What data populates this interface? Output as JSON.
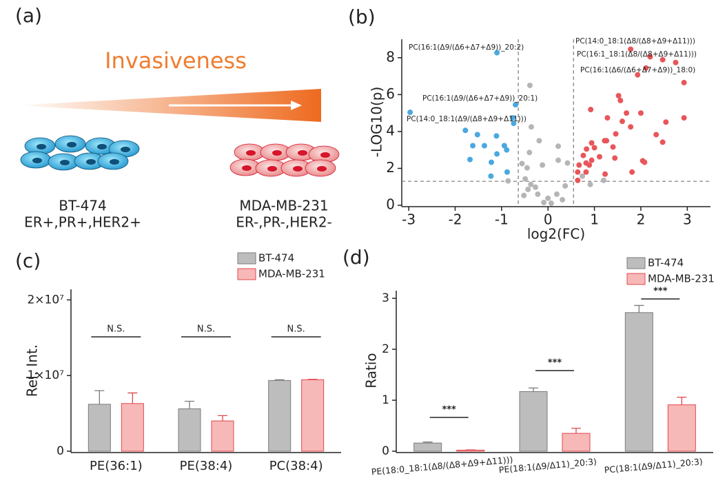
{
  "panel_a": {
    "panel_label": "(a)",
    "title": "Invasiveness",
    "left": {
      "name": "BT-474",
      "receptors": "ER+,PR+,HER2+"
    },
    "right": {
      "name": "MDA-MB-231",
      "receptors": "ER-,PR-,HER2-"
    }
  },
  "chart_data": [
    {
      "type": "scatter",
      "panel_label": "(b)",
      "x_label": "log2(FC)",
      "y_label": "-LOG10(p)",
      "xlim": [
        -3.15,
        3.5
      ],
      "ylim": [
        0,
        9
      ],
      "xticks": [
        -3,
        -2,
        -1,
        0,
        1,
        2,
        3
      ],
      "yticks": [
        0,
        2,
        4,
        6,
        8
      ],
      "threshold_x": [
        -0.64,
        0.55
      ],
      "threshold_y": 1.3,
      "series": [
        {
          "color": "#4aa8e0",
          "x": [
            -1.1,
            -2.97,
            -0.7,
            -0.74,
            -1.78,
            -1.52,
            -1.62,
            -1.68,
            -1.37,
            -1.11,
            -0.94,
            -0.89,
            -1.22,
            -0.88,
            -1.23,
            -1.1,
            -0.76
          ],
          "values": [
            8.27,
            5.04,
            5.45,
            4.44,
            4.06,
            3.83,
            3.23,
            2.48,
            3.23,
            3.76,
            3.23,
            3.0,
            2.33,
            1.8,
            1.58,
            2.78,
            4.74
          ]
        },
        {
          "color": "#b5b5b5",
          "x": [
            -0.39,
            -0.36,
            -0.19,
            -0.4,
            0.22,
            -0.56,
            -0.45,
            -0.12,
            0.22,
            0.42,
            -0.49,
            -0.37,
            -0.27,
            -0.43,
            -0.52,
            -0.22,
            0,
            0.07,
            -0.09,
            0.19,
            0.37,
            0.31,
            -0.86,
            1.2,
            0.91,
            0.74
          ],
          "values": [
            6.5,
            4.25,
            3.5,
            2.86,
            3.2,
            2.26,
            2.03,
            2.18,
            2.44,
            2.29,
            1.43,
            1.13,
            0.98,
            0.86,
            0.53,
            0.6,
            0.38,
            0.11,
            0.15,
            0.6,
            1.05,
            0.3,
            1.32,
            1.35,
            1.13,
            1.58
          ]
        },
        {
          "color": "#e8565a",
          "x": [
            1.78,
            2.2,
            2.47,
            2.75,
            1.93,
            2.11,
            2.93,
            1.52,
            1.56,
            0.92,
            1.69,
            2.0,
            2.93,
            2.54,
            1.28,
            1.6,
            1.78,
            2.33,
            1.46,
            1.22,
            1.26,
            0.94,
            1.0,
            2.47,
            1.4,
            0.83,
            0.76,
            1.11,
            1.44,
            2.04,
            2.08,
            0.82,
            0.67,
            0.89,
            0.94,
            0.64,
            0.82,
            1.81,
            1.23,
            0.64
          ],
          "values": [
            8.46,
            8.05,
            7.89,
            7.74,
            7.07,
            7.44,
            6.65,
            5.94,
            5.68,
            5.19,
            5.0,
            5.0,
            4.74,
            4.51,
            4.74,
            4.55,
            4.25,
            3.83,
            3.87,
            3.5,
            3.5,
            3.38,
            3.12,
            3.42,
            3.16,
            3.05,
            2.7,
            2.63,
            2.56,
            2.41,
            2.33,
            2.29,
            2.18,
            2.18,
            2.44,
            1.8,
            1.8,
            1.8,
            1.69,
            1.35
          ]
        }
      ],
      "annotations": [
        "PC(16:1(Δ9/(Δ6+Δ7+Δ9))_20:2)",
        "PC(16:1(Δ9/(Δ6+Δ7+Δ9))_20:1)",
        "PC(14:0_18:1(Δ9/(Δ8+Δ9+Δ11)))",
        "PC(14:0_18:1(Δ8/(Δ8+Δ9+Δ11)))",
        "PC(16:1_18:1(Δ8/(Δ8+Δ9+Δ11)))",
        "PC(16:1(Δ6/(Δ6+Δ7+Δ9))_18:0)"
      ]
    },
    {
      "type": "bar",
      "panel_label": "(c)",
      "y_label": "Rel. Int.",
      "categories": [
        "PE(36:1)",
        "PE(38:4)",
        "PC(38:4)"
      ],
      "ylim": [
        0,
        21400000
      ],
      "yticks": [
        0,
        {
          "value": 10000000,
          "label": "1×10⁷"
        },
        {
          "value": 20000000,
          "label": "2×10⁷"
        }
      ],
      "series": [
        {
          "name": "BT-474",
          "color": "#bdbdbd",
          "edge": "#7a7a7a",
          "values": [
            6200000,
            5600000,
            9350000
          ],
          "errors": [
            1800000,
            1000000,
            100000
          ]
        },
        {
          "name": "MDA-MB-231",
          "color": "#f7b8b8",
          "edge": "#e0474c",
          "values": [
            6300000,
            4000000,
            9450000
          ],
          "errors": [
            1400000,
            700000,
            50000
          ]
        }
      ],
      "annotations": [
        "N.S.",
        "N.S.",
        "N.S."
      ]
    },
    {
      "type": "bar",
      "panel_label": "(d)",
      "y_label": "Ratio",
      "categories": [
        "PE(18:0_18:1(Δ8/(Δ8+Δ9+Δ11)))",
        "PE(18:1(Δ9/Δ11)_20:3)",
        "PC(18:1(Δ9/Δ11)_20:3)"
      ],
      "ylim": [
        0,
        3.15
      ],
      "yticks": [
        0,
        1,
        2,
        3
      ],
      "series": [
        {
          "name": "BT-474",
          "color": "#bdbdbd",
          "edge": "#7a7a7a",
          "values": [
            0.16,
            1.17,
            2.72
          ],
          "errors": [
            0.02,
            0.07,
            0.14
          ]
        },
        {
          "name": "MDA-MB-231",
          "color": "#f7b8b8",
          "edge": "#e0474c",
          "values": [
            0.02,
            0.35,
            0.91
          ],
          "errors": [
            0.005,
            0.1,
            0.15
          ]
        }
      ],
      "annotations": [
        "***",
        "***",
        "***"
      ]
    }
  ]
}
